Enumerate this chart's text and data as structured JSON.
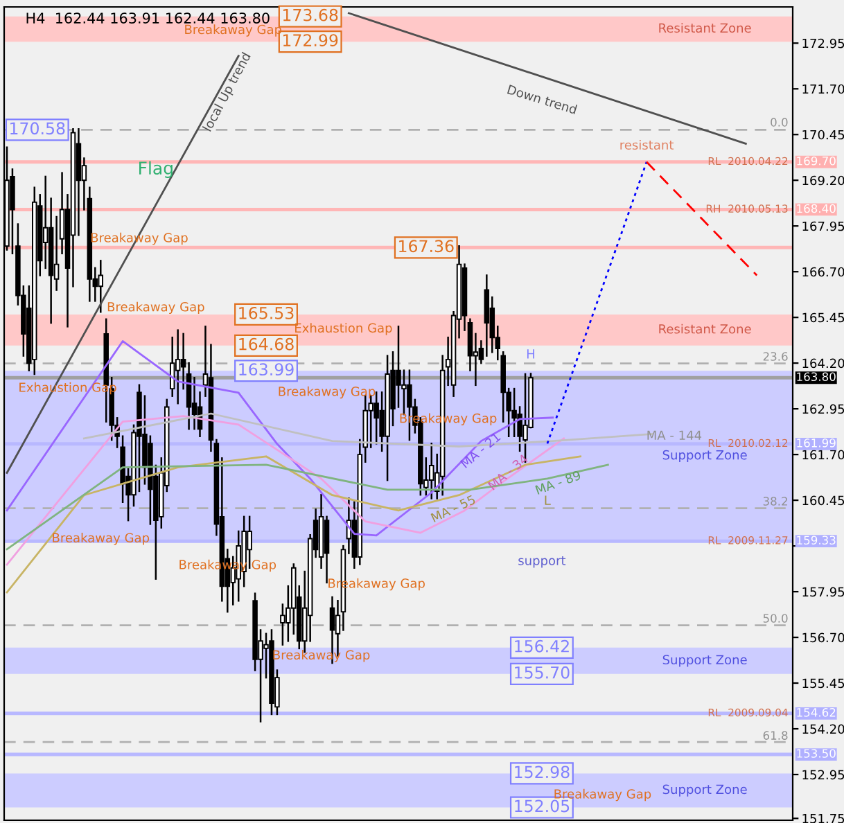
{
  "chart_data": {
    "type": "candlestick",
    "title": "H4  162.44 163.91 162.44 163.80",
    "categories": [
      null,
      null,
      null,
      null,
      null,
      null,
      null,
      null,
      null,
      null,
      null,
      null,
      null,
      null,
      null,
      null,
      null,
      null,
      null,
      null,
      null,
      null,
      null,
      null,
      null,
      null,
      null,
      null,
      null,
      null,
      null,
      null,
      null,
      null,
      null,
      null,
      null,
      null,
      null,
      null,
      null,
      null,
      null,
      null,
      null,
      null,
      null,
      null,
      null,
      null,
      null,
      null,
      null,
      null,
      null,
      null,
      null,
      null,
      null,
      null,
      null,
      null,
      null,
      null,
      null,
      null,
      null,
      null,
      null,
      null,
      null,
      null,
      null,
      null,
      null,
      null,
      null,
      null,
      null,
      null,
      null,
      null,
      null,
      null,
      null,
      null,
      null,
      null,
      null,
      null,
      null,
      null,
      null,
      null,
      null,
      null,
      null,
      null,
      null,
      null,
      null,
      null,
      null,
      null,
      null,
      null,
      null,
      null,
      null,
      null,
      null,
      null,
      null,
      null,
      null,
      null,
      null,
      null,
      null,
      null,
      null,
      null,
      null,
      null,
      null,
      null,
      null,
      null,
      null,
      null,
      null,
      null,
      null,
      null,
      null,
      null,
      null,
      null,
      null,
      null,
      null,
      null,
      null
    ],
    "ohlc": [
      [
        167.4,
        170.1,
        167.3,
        169.2
      ],
      [
        169.3,
        169.5,
        167.2,
        168.4
      ],
      [
        167.4,
        168.0,
        165.8,
        166.05
      ],
      [
        166.05,
        166.3,
        164.4,
        165.0
      ],
      [
        165.7,
        166.3,
        164.0,
        164.2
      ],
      [
        164.3,
        169.0,
        163.9,
        168.6
      ],
      [
        168.5,
        168.8,
        166.6,
        167.0
      ],
      [
        167.5,
        169.3,
        166.8,
        167.9
      ],
      [
        167.9,
        168.7,
        165.3,
        166.6
      ],
      [
        166.5,
        168.2,
        166.2,
        166.9
      ],
      [
        167.6,
        169.4,
        167.2,
        168.4
      ],
      [
        168.4,
        168.8,
        165.2,
        166.8
      ],
      [
        167.7,
        170.6,
        166.3,
        170.5
      ],
      [
        170.2,
        170.6,
        167.7,
        169.2
      ],
      [
        169.2,
        169.8,
        168.4,
        169.6
      ],
      [
        168.7,
        169.0,
        165.9,
        166.5
      ],
      [
        166.5,
        166.8,
        165.9,
        166.3
      ],
      [
        166.3,
        167.0,
        165.6,
        166.6
      ],
      [
        165.0,
        165.4,
        162.6,
        163.6
      ],
      [
        163.5,
        163.8,
        162.1,
        162.5
      ],
      [
        162.5,
        162.7,
        161.9,
        162.2
      ],
      [
        161.9,
        162.2,
        160.4,
        160.9
      ],
      [
        161.1,
        161.3,
        159.9,
        160.6
      ],
      [
        160.6,
        162.5,
        160.3,
        162.3
      ],
      [
        163.4,
        163.6,
        160.7,
        162.2
      ],
      [
        162.25,
        163.3,
        160.9,
        161.35
      ],
      [
        162.0,
        162.2,
        159.8,
        160.75
      ],
      [
        161.1,
        161.4,
        158.3,
        159.9
      ],
      [
        160.0,
        161.6,
        159.7,
        161.2
      ],
      [
        160.85,
        163.2,
        160.7,
        163.0
      ],
      [
        163.5,
        164.9,
        163.3,
        164.2
      ],
      [
        164.0,
        165.1,
        163.1,
        164.3
      ],
      [
        164.3,
        165.0,
        163.5,
        164.1
      ],
      [
        163.9,
        164.2,
        162.4,
        163.0
      ],
      [
        163.1,
        163.8,
        162.4,
        162.8
      ],
      [
        163.0,
        163.4,
        162.2,
        162.4
      ],
      [
        163.6,
        165.2,
        163.3,
        163.9
      ],
      [
        163.8,
        164.7,
        161.8,
        162.1
      ],
      [
        162.0,
        162.1,
        159.5,
        159.8
      ],
      [
        160.0,
        161.6,
        157.7,
        158.1
      ],
      [
        158.85,
        159.1,
        157.4,
        158.1
      ],
      [
        158.2,
        158.9,
        157.6,
        158.6
      ],
      [
        158.3,
        159.6,
        157.7,
        159.2
      ],
      [
        158.5,
        160.0,
        158.1,
        159.6
      ],
      [
        159.1,
        160.0,
        158.6,
        159.6
      ],
      [
        157.7,
        157.9,
        155.8,
        156.1
      ],
      [
        156.1,
        156.9,
        154.4,
        156.6
      ],
      [
        156.4,
        156.8,
        155.6,
        156.5
      ],
      [
        156.6,
        156.9,
        154.6,
        154.9
      ],
      [
        154.8,
        155.8,
        154.6,
        155.6
      ],
      [
        157.1,
        157.6,
        156.5,
        157.3
      ],
      [
        157.1,
        158.1,
        156.6,
        157.5
      ],
      [
        157.5,
        158.7,
        156.8,
        158.6
      ],
      [
        157.8,
        158.1,
        156.4,
        156.6
      ],
      [
        156.6,
        158.5,
        156.3,
        157.5
      ],
      [
        157.3,
        159.5,
        156.6,
        159.4
      ],
      [
        159.9,
        160.2,
        158.9,
        159.1
      ],
      [
        158.9,
        160.6,
        158.6,
        160.0
      ],
      [
        159.9,
        160.0,
        158.2,
        159.0
      ],
      [
        157.5,
        157.8,
        156.0,
        156.9
      ],
      [
        156.8,
        157.7,
        156.2,
        157.3
      ],
      [
        157.4,
        159.2,
        156.9,
        159.1
      ],
      [
        159.4,
        160.5,
        159.0,
        159.9
      ],
      [
        159.9,
        160.4,
        158.6,
        158.9
      ],
      [
        158.9,
        162.1,
        158.7,
        161.7
      ],
      [
        161.9,
        163.3,
        161.5,
        162.9
      ],
      [
        162.9,
        163.3,
        161.9,
        163.1
      ],
      [
        163.1,
        163.4,
        162.0,
        162.7
      ],
      [
        162.9,
        163.4,
        161.8,
        162.2
      ],
      [
        162.2,
        164.4,
        161.0,
        163.9
      ],
      [
        164.0,
        164.5,
        162.5,
        162.95
      ],
      [
        164.0,
        165.2,
        163.0,
        163.6
      ],
      [
        163.5,
        164.0,
        162.8,
        163.6
      ],
      [
        163.6,
        164.0,
        162.1,
        163.0
      ],
      [
        163.0,
        163.2,
        162.3,
        162.5
      ],
      [
        162.6,
        162.7,
        160.6,
        160.9
      ],
      [
        160.8,
        161.6,
        160.6,
        161.0
      ],
      [
        161.0,
        162.0,
        160.5,
        161.4
      ],
      [
        160.7,
        161.7,
        160.5,
        161.2
      ],
      [
        161.1,
        164.4,
        160.6,
        164.0
      ],
      [
        164.1,
        164.9,
        163.6,
        164.3
      ],
      [
        163.6,
        165.6,
        163.3,
        165.5
      ],
      [
        165.4,
        167.4,
        164.9,
        166.9
      ],
      [
        166.8,
        166.9,
        165.1,
        165.5
      ],
      [
        165.3,
        165.4,
        164.0,
        164.4
      ],
      [
        164.4,
        165.0,
        163.6,
        164.5
      ],
      [
        164.6,
        164.8,
        164.2,
        164.3
      ],
      [
        166.2,
        166.6,
        164.4,
        165.3
      ],
      [
        165.7,
        166.0,
        164.5,
        164.9
      ],
      [
        164.9,
        165.2,
        164.3,
        164.6
      ],
      [
        164.4,
        164.5,
        162.6,
        163.4
      ],
      [
        163.4,
        163.5,
        162.2,
        162.9
      ],
      [
        162.9,
        163.5,
        162.2,
        162.7
      ],
      [
        162.8,
        163.0,
        161.8,
        162.2
      ],
      [
        162.1,
        163.9,
        161.5,
        162.5
      ],
      [
        162.44,
        163.91,
        162.44,
        163.8
      ],
      null,
      null,
      null,
      null,
      null,
      null,
      null,
      null,
      null,
      null,
      null,
      null,
      null,
      null,
      null,
      null,
      null,
      null,
      null,
      null,
      null,
      null,
      null,
      null,
      null,
      null,
      null,
      null,
      null,
      null,
      null,
      null,
      null,
      null,
      null,
      null,
      null,
      null,
      null,
      null,
      null,
      null,
      null,
      null,
      null,
      null,
      null
    ],
    "series": [
      {
        "type": "line",
        "color": "#9966ff",
        "values": [
          160.17,
          null,
          null,
          null,
          null,
          null,
          null,
          null,
          null,
          null,
          null,
          null,
          null,
          null,
          null,
          null,
          null,
          null,
          null,
          null,
          null,
          164.8,
          null,
          null,
          null,
          null,
          null,
          null,
          null,
          null,
          null,
          163.7,
          null,
          null,
          null,
          null,
          null,
          null,
          null,
          null,
          null,
          null,
          163.39,
          null,
          null,
          null,
          null,
          null,
          null,
          161.99,
          null,
          null,
          null,
          null,
          null,
          161.04,
          null,
          null,
          null,
          null,
          null,
          null,
          null,
          159.53,
          null,
          null,
          null,
          159.49,
          null,
          null,
          null,
          null,
          null,
          null,
          null,
          null,
          null,
          160.66,
          null,
          null,
          null,
          null,
          null,
          null,
          null,
          null,
          162.07,
          null,
          null,
          null,
          null,
          null,
          null,
          162.67,
          null,
          null,
          null,
          null,
          null,
          162.71,
          null,
          null,
          null,
          null,
          null,
          null,
          null,
          null,
          null,
          null,
          null,
          null,
          null,
          null,
          null,
          null,
          null,
          null,
          null,
          null,
          null,
          null,
          null,
          null,
          null,
          null,
          null,
          null,
          null,
          null,
          null,
          null,
          null,
          null,
          null,
          null,
          null,
          null,
          null,
          null,
          null,
          null,
          null
        ]
      },
      {
        "type": "line",
        "color": "#f0a0e0",
        "values": [
          158.69,
          null,
          null,
          null,
          null,
          null,
          null,
          null,
          null,
          null,
          null,
          null,
          null,
          null,
          null,
          null,
          null,
          null,
          null,
          null,
          null,
          162.6,
          null,
          null,
          null,
          null,
          null,
          null,
          null,
          null,
          null,
          null,
          162.75,
          null,
          null,
          null,
          null,
          null,
          null,
          null,
          null,
          null,
          162.52,
          null,
          null,
          null,
          null,
          null,
          null,
          null,
          null,
          null,
          null,
          null,
          null,
          null,
          null,
          161.04,
          null,
          null,
          null,
          null,
          null,
          null,
          null,
          159.87,
          null,
          null,
          null,
          null,
          null,
          null,
          null,
          null,
          null,
          159.56,
          null,
          null,
          null,
          null,
          null,
          null,
          null,
          160.17,
          null,
          null,
          null,
          null,
          null,
          160.85,
          null,
          null,
          null,
          null,
          null,
          null,
          null,
          null,
          null,
          null,
          null,
          162.14,
          null,
          null,
          null,
          null,
          null,
          null,
          null,
          null,
          null,
          null,
          null,
          null,
          null,
          null,
          null,
          null,
          null,
          null,
          null,
          null,
          null,
          null,
          null,
          null,
          null,
          null,
          null,
          null,
          null,
          null,
          null,
          null,
          null,
          null,
          null,
          null,
          null,
          null,
          null,
          null,
          null
        ]
      },
      {
        "type": "line",
        "color": "#c8b464",
        "values": [
          157.93,
          null,
          null,
          null,
          null,
          null,
          null,
          null,
          null,
          null,
          null,
          null,
          null,
          null,
          160.59,
          null,
          null,
          null,
          null,
          null,
          null,
          null,
          null,
          null,
          null,
          null,
          null,
          null,
          null,
          null,
          null,
          161.35,
          null,
          null,
          null,
          null,
          null,
          null,
          null,
          null,
          null,
          null,
          null,
          null,
          null,
          null,
          null,
          161.65,
          null,
          null,
          null,
          null,
          null,
          null,
          null,
          null,
          null,
          null,
          null,
          160.59,
          null,
          null,
          null,
          null,
          null,
          null,
          null,
          null,
          null,
          null,
          null,
          160.17,
          null,
          null,
          null,
          null,
          null,
          null,
          null,
          null,
          null,
          null,
          160.59,
          null,
          null,
          null,
          null,
          null,
          null,
          null,
          null,
          null,
          null,
          null,
          161.42,
          null,
          null,
          null,
          null,
          null,
          null,
          null,
          null,
          null,
          161.65,
          null,
          null,
          null,
          null,
          null,
          null,
          null,
          null,
          null,
          null,
          null,
          null,
          null,
          null,
          null,
          null,
          null,
          null,
          null,
          null,
          null,
          null,
          null,
          null,
          null,
          null,
          null,
          null,
          null,
          null,
          null,
          null,
          null,
          null,
          null,
          null,
          null,
          null
        ]
      },
      {
        "type": "line",
        "color": "#80b480",
        "values": [
          159.11,
          null,
          null,
          null,
          null,
          null,
          null,
          null,
          null,
          null,
          null,
          null,
          null,
          null,
          null,
          null,
          null,
          null,
          null,
          null,
          null,
          161.35,
          null,
          null,
          null,
          null,
          null,
          null,
          null,
          null,
          null,
          null,
          null,
          null,
          null,
          null,
          null,
          null,
          null,
          null,
          null,
          null,
          null,
          null,
          null,
          null,
          null,
          161.42,
          null,
          null,
          null,
          null,
          null,
          null,
          null,
          null,
          null,
          null,
          null,
          null,
          null,
          null,
          null,
          null,
          null,
          null,
          null,
          null,
          null,
          160.74,
          null,
          null,
          null,
          null,
          null,
          null,
          null,
          null,
          null,
          null,
          null,
          null,
          null,
          null,
          160.74,
          null,
          null,
          null,
          null,
          null,
          null,
          null,
          null,
          null,
          null,
          null,
          null,
          null,
          161.04,
          null,
          null,
          null,
          null,
          null,
          null,
          null,
          null,
          null,
          null,
          161.42,
          null,
          null,
          null,
          null,
          null,
          null,
          null,
          null,
          null,
          null,
          null,
          null,
          null,
          null,
          null,
          null,
          null,
          null,
          null,
          null,
          null,
          null,
          null,
          null,
          null,
          null,
          null,
          null,
          null,
          null,
          null,
          null,
          null
        ]
      },
      {
        "type": "line",
        "color": "#c0c0c0",
        "values": [
          null,
          null,
          null,
          null,
          null,
          null,
          null,
          null,
          null,
          null,
          null,
          null,
          null,
          null,
          162.14,
          null,
          null,
          null,
          null,
          null,
          null,
          null,
          null,
          null,
          null,
          null,
          null,
          null,
          null,
          null,
          null,
          null,
          null,
          null,
          null,
          null,
          null,
          162.82,
          null,
          null,
          null,
          null,
          null,
          null,
          null,
          null,
          null,
          null,
          null,
          null,
          null,
          null,
          null,
          null,
          null,
          null,
          null,
          null,
          null,
          162.07,
          null,
          null,
          null,
          null,
          null,
          null,
          null,
          null,
          null,
          null,
          null,
          null,
          null,
          null,
          null,
          null,
          null,
          null,
          null,
          null,
          null,
          null,
          161.92,
          null,
          null,
          null,
          null,
          null,
          null,
          null,
          null,
          null,
          null,
          null,
          null,
          null,
          null,
          null,
          null,
          162.07,
          null,
          null,
          null,
          null,
          null,
          null,
          null,
          null,
          null,
          null,
          null,
          null,
          null,
          null,
          null,
          null,
          null,
          162.26,
          null,
          null,
          null,
          null,
          null,
          null,
          null,
          null,
          null,
          null,
          null,
          null,
          null,
          null,
          null,
          null,
          null,
          null,
          null,
          null,
          null,
          null,
          null,
          null,
          null
        ]
      },
      {
        "type": "line",
        "color": "#505050",
        "values": [
          null,
          null,
          null,
          null,
          null,
          null,
          null,
          null,
          null,
          null,
          null,
          null,
          null,
          null,
          null,
          null,
          null,
          null,
          null,
          null,
          null,
          null,
          null,
          null,
          null,
          null,
          null,
          null,
          null,
          null,
          null,
          null,
          null,
          null,
          null,
          null,
          null,
          null,
          null,
          null,
          null,
          null,
          null,
          null,
          null,
          null,
          null,
          null,
          null,
          null,
          null,
          null,
          null,
          null,
          null,
          null,
          null,
          null,
          null,
          null,
          null,
          null,
          173.77,
          null,
          null,
          null,
          null,
          null,
          null,
          null,
          null,
          null,
          null,
          null,
          null,
          null,
          null,
          null,
          null,
          null,
          null,
          null,
          null,
          null,
          null,
          null,
          null,
          null,
          null,
          null,
          null,
          null,
          null,
          null,
          null,
          null,
          null,
          null,
          null,
          null,
          null,
          null,
          null,
          null,
          null,
          null,
          null,
          null,
          null,
          null,
          null,
          null,
          null,
          null,
          null,
          null,
          null,
          null,
          null,
          null,
          null,
          null,
          null,
          null,
          null,
          null,
          null,
          null,
          null,
          null,
          null,
          null,
          null,
          null,
          170.2,
          null,
          null,
          null,
          null,
          null,
          null,
          null,
          null
        ]
      },
      {
        "type": "line",
        "color": "#505050",
        "values": [
          161.2,
          null,
          null,
          null,
          null,
          null,
          null,
          null,
          null,
          null,
          null,
          null,
          null,
          null,
          null,
          null,
          null,
          null,
          null,
          null,
          null,
          null,
          null,
          null,
          null,
          null,
          null,
          null,
          null,
          null,
          null,
          null,
          null,
          null,
          null,
          null,
          null,
          null,
          null,
          null,
          null,
          null,
          172.6,
          null,
          null,
          null,
          null,
          null,
          null,
          null,
          null,
          null,
          null,
          null,
          null,
          null,
          null,
          null,
          null,
          null,
          null,
          null,
          null,
          null,
          null,
          null,
          null,
          null,
          null,
          null,
          null,
          null,
          null,
          null,
          null,
          null,
          null,
          null,
          null,
          null,
          null,
          null,
          null,
          null,
          null,
          null,
          null,
          null,
          null,
          null,
          null,
          null,
          null,
          null,
          null,
          null,
          null,
          null,
          null,
          null,
          null,
          null,
          null,
          null,
          null,
          null,
          null,
          null,
          null,
          null,
          null,
          null,
          null,
          null,
          null,
          null,
          null,
          null,
          null,
          null,
          null,
          null,
          null,
          null,
          null,
          null,
          null,
          null,
          null,
          null,
          null,
          null,
          null,
          null,
          null,
          null,
          null,
          null,
          null,
          null,
          null,
          null,
          null
        ]
      },
      {
        "type": "line",
        "color": "#0000ff",
        "line_style": "dotted",
        "values": [
          null,
          null,
          null,
          null,
          null,
          null,
          null,
          null,
          null,
          null,
          null,
          null,
          null,
          null,
          null,
          null,
          null,
          null,
          null,
          null,
          null,
          null,
          null,
          null,
          null,
          null,
          null,
          null,
          null,
          null,
          null,
          null,
          null,
          null,
          null,
          null,
          null,
          null,
          null,
          null,
          null,
          null,
          null,
          null,
          null,
          null,
          null,
          null,
          null,
          null,
          null,
          null,
          null,
          null,
          null,
          null,
          null,
          null,
          null,
          null,
          null,
          null,
          null,
          null,
          null,
          null,
          null,
          null,
          null,
          null,
          null,
          null,
          null,
          null,
          null,
          null,
          null,
          null,
          null,
          null,
          null,
          null,
          null,
          null,
          null,
          null,
          null,
          null,
          null,
          null,
          null,
          null,
          null,
          null,
          null,
          null,
          null,
          null,
          162.0,
          null,
          null,
          null,
          null,
          null,
          null,
          null,
          null,
          null,
          null,
          null,
          null,
          null,
          null,
          null,
          null,
          null,
          169.7,
          null,
          null,
          null,
          null,
          null,
          null,
          null,
          null,
          null,
          null,
          null,
          null,
          null,
          null,
          null,
          null,
          null,
          null,
          null,
          null,
          null,
          null,
          null,
          null,
          null,
          null
        ]
      },
      {
        "type": "line",
        "color": "#ff0000",
        "line_style": "dashed",
        "values": [
          null,
          null,
          null,
          null,
          null,
          null,
          null,
          null,
          null,
          null,
          null,
          null,
          null,
          null,
          null,
          null,
          null,
          null,
          null,
          null,
          null,
          null,
          null,
          null,
          null,
          null,
          null,
          null,
          null,
          null,
          null,
          null,
          null,
          null,
          null,
          null,
          null,
          null,
          null,
          null,
          null,
          null,
          null,
          null,
          null,
          null,
          null,
          null,
          null,
          null,
          null,
          null,
          null,
          null,
          null,
          null,
          null,
          null,
          null,
          null,
          null,
          null,
          null,
          null,
          null,
          null,
          null,
          null,
          null,
          null,
          null,
          null,
          null,
          null,
          null,
          null,
          null,
          null,
          null,
          null,
          null,
          null,
          null,
          null,
          null,
          null,
          null,
          null,
          null,
          null,
          null,
          null,
          null,
          null,
          null,
          null,
          null,
          null,
          null,
          null,
          null,
          null,
          null,
          null,
          null,
          null,
          null,
          null,
          null,
          null,
          null,
          null,
          null,
          null,
          null,
          null,
          169.7,
          null,
          null,
          null,
          null,
          null,
          null,
          null,
          null,
          null,
          null,
          null,
          null,
          null,
          null,
          null,
          null,
          null,
          null,
          null,
          166.6,
          null,
          null,
          null,
          null,
          null,
          null
        ]
      }
    ],
    "ylim": [
      151.7,
      173.94
    ],
    "yticks": [
      172.95,
      {
        "value": 171.7,
        "label": "171.70"
      },
      170.45,
      {
        "value": 169.2,
        "label": "169.20"
      },
      167.95,
      {
        "value": 166.7,
        "label": "166.70"
      },
      165.45,
      {
        "value": 164.2,
        "label": "164.20"
      },
      162.95,
      {
        "value": 161.7,
        "label": "161.70"
      },
      160.45,
      {
        "value": 159.2,
        "label": null
      },
      157.95,
      {
        "value": 156.7,
        "label": "156.70"
      },
      155.45,
      {
        "value": 154.2,
        "label": "154.20"
      },
      152.95,
      151.75
    ],
    "tick_labels": "y",
    "bands": [
      {
        "axis": "y",
        "from": 172.99,
        "to": 173.68,
        "label": "Resistant Zone",
        "color": "#ffc8c8"
      },
      {
        "axis": "y",
        "from": 164.68,
        "to": 165.53,
        "label": "Resistant Zone",
        "color": "#ffc8c8"
      },
      {
        "axis": "y",
        "from": 159.33,
        "to": 163.99,
        "label": "Support Zone",
        "color": "#ccccff"
      },
      {
        "axis": "y",
        "from": 155.7,
        "to": 156.42,
        "label": "Support Zone",
        "color": "#ccccff"
      },
      {
        "axis": "y",
        "from": 152.05,
        "to": 152.98,
        "label": "Support Zone",
        "color": "#ccccff"
      }
    ],
    "ref_lines": [
      {
        "axis": "y",
        "value": 169.7,
        "label": "RL  2010.04.22",
        "color": "#ffb6b6",
        "line_style": "solid"
      },
      {
        "axis": "y",
        "value": 168.4,
        "label": "RH  2010.05.13",
        "color": "#ffb6b6",
        "line_style": "solid"
      },
      {
        "axis": "y",
        "value": 167.36,
        "color": "#ffb6b6",
        "line_style": "solid"
      },
      {
        "axis": "y",
        "value": 170.58,
        "color": "#b0b0b0",
        "line_style": "dashed"
      },
      {
        "axis": "y",
        "value": 164.19,
        "color": "#b0b0b0",
        "line_style": "dashed"
      },
      {
        "axis": "y",
        "value": 160.23,
        "color": "#b0b0b0",
        "line_style": "dashed"
      },
      {
        "axis": "y",
        "value": 157.03,
        "color": "#b0b0b0",
        "line_style": "dashed"
      },
      {
        "axis": "y",
        "value": 153.84,
        "color": "#b0b0b0",
        "line_style": "dashed"
      },
      {
        "axis": "y",
        "value": 163.8,
        "color": "#a0a0a0",
        "line_style": "solid"
      },
      {
        "axis": "y",
        "value": 161.99,
        "label": "RL  2010.02.12",
        "color": "#b8b8ff",
        "line_style": "solid"
      },
      {
        "axis": "y",
        "value": 159.33,
        "label": "RL  2009.11.27",
        "color": "#b8b8ff",
        "line_style": "solid"
      },
      {
        "axis": "y",
        "value": 154.62,
        "label": "RL  2009.09.04",
        "color": "#b8b8ff",
        "line_style": "solid"
      },
      {
        "axis": "y",
        "value": 153.5,
        "color": "#b8b8ff",
        "line_style": "solid"
      }
    ],
    "annotations": [
      {
        "text": "173.68",
        "y": 173.68
      },
      {
        "text": "172.99",
        "y": 172.99
      },
      "Breakaway Gap",
      "Down trend",
      "local Up trend",
      {
        "text": "170.58",
        "y": 170.58
      },
      "Flag",
      "Breakaway Gap",
      "Breakaway Gap",
      {
        "text": "165.53",
        "y": 165.53
      },
      "Exhaustion Gap",
      {
        "text": "164.68",
        "y": 164.68
      },
      {
        "text": "163.99",
        "y": 163.99
      },
      {
        "text": "167.36",
        "y": 167.36
      },
      "Exhaustion Gap",
      "Breakaway Gap",
      "Breakaway Gap",
      "H",
      "MA - 21",
      "MA - 34",
      "L",
      "MA - 55",
      "MA - 89",
      "MA - 144",
      "Breakaway Gap",
      "Breakaway Gap",
      "Breakaway Gap",
      "Breakaway Gap",
      "support",
      "resistant",
      {
        "text": "156.42",
        "y": 156.42
      },
      {
        "text": "155.70",
        "y": 155.7
      },
      {
        "text": "152.98",
        "y": 152.98
      },
      {
        "text": "152.05",
        "y": 152.05
      },
      "Breakaway Gap",
      "169.70",
      "168.40",
      "163.80",
      "161.99",
      "159.33",
      "154.62",
      "153.50",
      "0.0",
      "23.6",
      "38.2",
      "50.0",
      "61.8"
    ],
    "grid": false
  }
}
